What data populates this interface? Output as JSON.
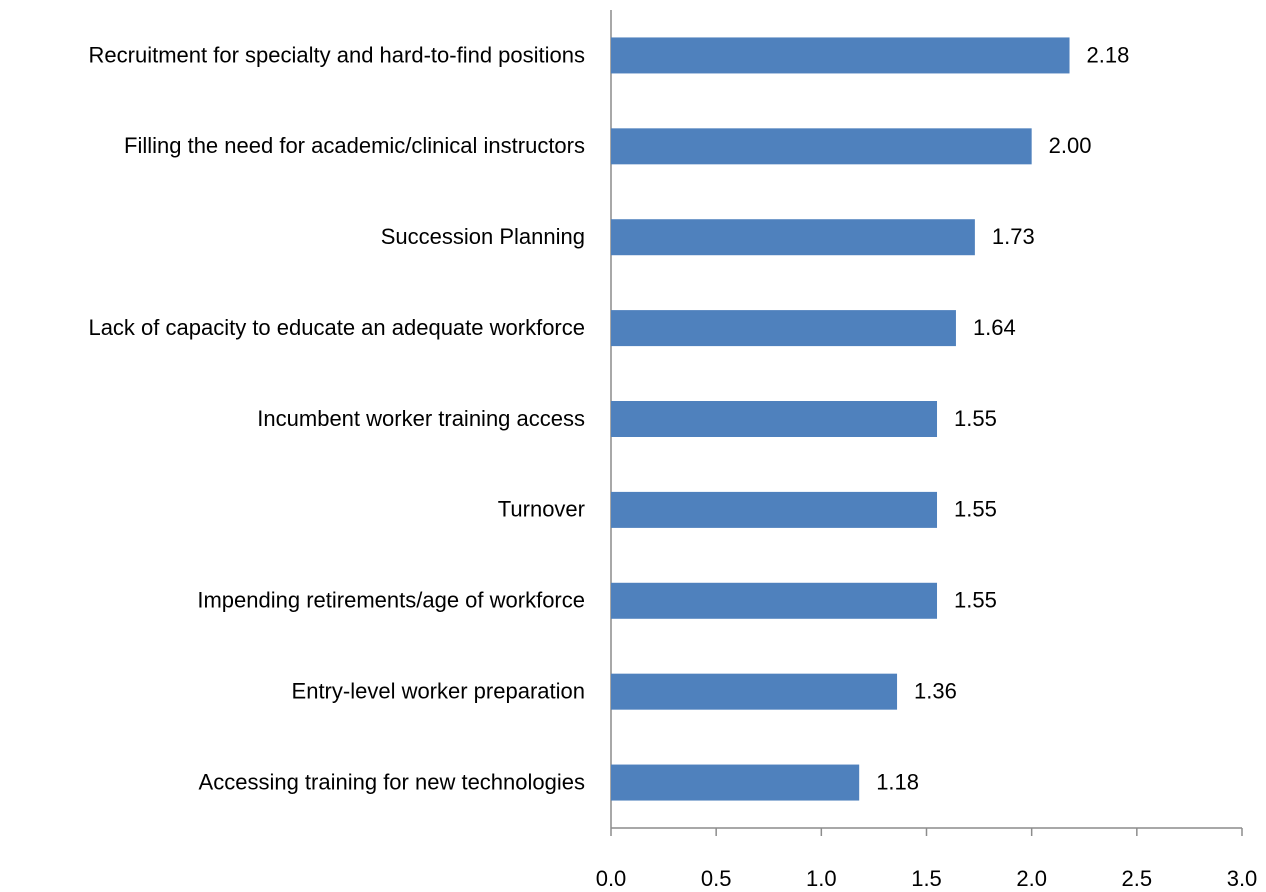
{
  "chart_data": {
    "type": "barh",
    "categories": [
      "Recruitment for specialty and hard-to-find positions",
      "Filling the need for academic/clinical instructors",
      "Succession Planning",
      "Lack of capacity to educate an adequate workforce",
      "Incumbent worker training access",
      "Turnover",
      "Impending retirements/age of workforce",
      "Entry-level worker preparation",
      "Accessing training for new technologies"
    ],
    "values": [
      2.18,
      2.0,
      1.73,
      1.64,
      1.55,
      1.55,
      1.55,
      1.36,
      1.18
    ],
    "value_labels": [
      "2.18",
      "2.00",
      "1.73",
      "1.64",
      "1.55",
      "1.55",
      "1.55",
      "1.36",
      "1.18"
    ],
    "color": "#4f81bd",
    "xlim": [
      0,
      3
    ],
    "xticks": [
      {
        "value": 0,
        "label": "0.0"
      },
      0.5,
      {
        "value": 1,
        "label": "1.0"
      },
      1.5,
      {
        "value": 2,
        "label": "2.0"
      },
      2.5,
      {
        "value": 3,
        "label": "3.0"
      }
    ],
    "grid": false
  }
}
